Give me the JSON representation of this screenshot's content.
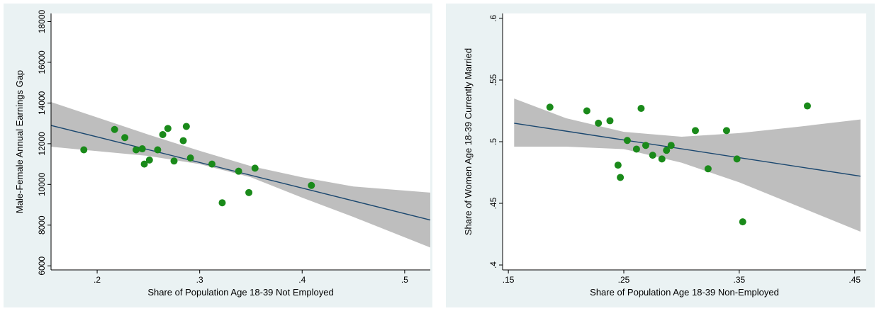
{
  "colors": {
    "background": "#eaf2f3",
    "plot": "#ffffff",
    "points": "#1a8a1a",
    "fit_line": "#1a476f",
    "ci_band": "#bebebe"
  },
  "chart_data": [
    {
      "type": "scatter",
      "title": "",
      "xlabel": "Share of Population Age 18-39 Not Employed",
      "ylabel": "Male-Female Annual Earnings Gap",
      "xlim": [
        0.155,
        0.525
      ],
      "ylim": [
        5800,
        18400
      ],
      "xticks": [
        0.2,
        0.3,
        0.4,
        0.5
      ],
      "xtick_labels": [
        ".2",
        ".3",
        ".4",
        ".5"
      ],
      "yticks": [
        6000,
        8000,
        10000,
        12000,
        14000,
        16000,
        18000
      ],
      "ytick_labels": [
        "6000",
        "8000",
        "10000",
        "12000",
        "14000",
        "16000",
        "18000"
      ],
      "grid": false,
      "points": [
        [
          0.187,
          11700
        ],
        [
          0.217,
          12700
        ],
        [
          0.227,
          12300
        ],
        [
          0.238,
          11700
        ],
        [
          0.244,
          11750
        ],
        [
          0.246,
          11000
        ],
        [
          0.251,
          11200
        ],
        [
          0.259,
          11700
        ],
        [
          0.264,
          12450
        ],
        [
          0.269,
          12750
        ],
        [
          0.275,
          11150
        ],
        [
          0.284,
          12150
        ],
        [
          0.287,
          12850
        ],
        [
          0.291,
          11300
        ],
        [
          0.312,
          11000
        ],
        [
          0.322,
          9100
        ],
        [
          0.338,
          10650
        ],
        [
          0.348,
          9600
        ],
        [
          0.354,
          10800
        ],
        [
          0.409,
          9950
        ]
      ],
      "fit_line": [
        [
          0.155,
          12900
        ],
        [
          0.525,
          8250
        ]
      ],
      "ci_upper": [
        [
          0.155,
          14050
        ],
        [
          0.25,
          12450
        ],
        [
          0.3,
          11650
        ],
        [
          0.35,
          10900
        ],
        [
          0.4,
          10350
        ],
        [
          0.45,
          9900
        ],
        [
          0.525,
          9600
        ]
      ],
      "ci_lower": [
        [
          0.155,
          11850
        ],
        [
          0.25,
          11400
        ],
        [
          0.3,
          11000
        ],
        [
          0.35,
          10350
        ],
        [
          0.4,
          9350
        ],
        [
          0.45,
          8400
        ],
        [
          0.525,
          6900
        ]
      ]
    },
    {
      "type": "scatter",
      "title": "",
      "xlabel": "Share of Population Age 18-39 Non-Employed",
      "ylabel": "Share of Women Age 18-39 Currently Married",
      "xlim": [
        0.145,
        0.46
      ],
      "ylim": [
        0.396,
        0.604
      ],
      "xticks": [
        0.15,
        0.25,
        0.35,
        0.45
      ],
      "xtick_labels": [
        ".15",
        ".25",
        ".35",
        ".45"
      ],
      "yticks": [
        0.4,
        0.45,
        0.5,
        0.55,
        0.6
      ],
      "ytick_labels": [
        ".4",
        ".45",
        ".5",
        ".55",
        ".6"
      ],
      "grid": false,
      "points": [
        [
          0.186,
          0.528
        ],
        [
          0.218,
          0.525
        ],
        [
          0.228,
          0.515
        ],
        [
          0.238,
          0.517
        ],
        [
          0.245,
          0.481
        ],
        [
          0.247,
          0.471
        ],
        [
          0.253,
          0.501
        ],
        [
          0.261,
          0.494
        ],
        [
          0.265,
          0.527
        ],
        [
          0.269,
          0.497
        ],
        [
          0.275,
          0.489
        ],
        [
          0.283,
          0.486
        ],
        [
          0.287,
          0.493
        ],
        [
          0.291,
          0.497
        ],
        [
          0.312,
          0.509
        ],
        [
          0.323,
          0.478
        ],
        [
          0.339,
          0.509
        ],
        [
          0.348,
          0.486
        ],
        [
          0.353,
          0.435
        ],
        [
          0.409,
          0.529
        ]
      ],
      "fit_line": [
        [
          0.155,
          0.515
        ],
        [
          0.455,
          0.472
        ]
      ],
      "ci_upper": [
        [
          0.155,
          0.535
        ],
        [
          0.2,
          0.519
        ],
        [
          0.25,
          0.508
        ],
        [
          0.3,
          0.504
        ],
        [
          0.35,
          0.507
        ],
        [
          0.4,
          0.512
        ],
        [
          0.455,
          0.518
        ]
      ],
      "ci_lower": [
        [
          0.155,
          0.496
        ],
        [
          0.2,
          0.496
        ],
        [
          0.25,
          0.494
        ],
        [
          0.3,
          0.483
        ],
        [
          0.35,
          0.467
        ],
        [
          0.4,
          0.448
        ],
        [
          0.455,
          0.427
        ]
      ]
    }
  ]
}
